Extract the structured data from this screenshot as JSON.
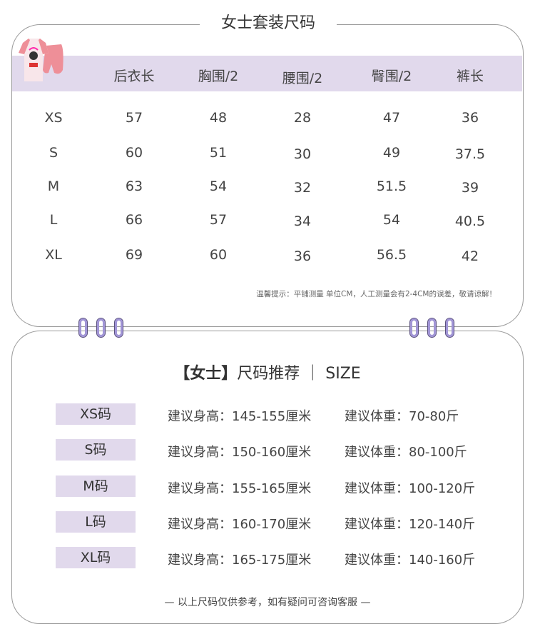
{
  "size_chart": {
    "title": "女士套装尺码",
    "headers": [
      "后衣长",
      "胸围/2",
      "腰围/2",
      "臀围/2",
      "裤长"
    ],
    "rows": [
      {
        "size": "XS",
        "values": [
          "57",
          "48",
          "28",
          "47",
          "36"
        ]
      },
      {
        "size": "S",
        "values": [
          "60",
          "51",
          "30",
          "49",
          "37.5"
        ]
      },
      {
        "size": "M",
        "values": [
          "63",
          "54",
          "32",
          "51.5",
          "39"
        ]
      },
      {
        "size": "L",
        "values": [
          "66",
          "57",
          "34",
          "54",
          "40.5"
        ]
      },
      {
        "size": "XL",
        "values": [
          "69",
          "60",
          "36",
          "56.5",
          "42"
        ]
      }
    ],
    "note": "温馨提示：平铺测量 单位CM，人工测量会有2-4CM的误差，敬请谅解！"
  },
  "recommend": {
    "title_bold": "【女士】",
    "title_rest": "尺码推荐 ｜ SIZE",
    "rows": [
      {
        "size": "XS码",
        "height": "建议身高：145-155厘米",
        "weight": "建议体重：70-80斤"
      },
      {
        "size": "S码",
        "height": "建议身高：150-160厘米",
        "weight": "建议体重：80-100斤"
      },
      {
        "size": "M码",
        "height": "建议身高：155-165厘米",
        "weight": "建议体重：100-120斤"
      },
      {
        "size": "L码",
        "height": "建议身高：160-170厘米",
        "weight": "建议体重：120-140斤"
      },
      {
        "size": "XL码",
        "height": "建议身高：165-175厘米",
        "weight": "建议体重：140-160斤"
      }
    ],
    "footer": "— 以上尺码仅供参考，如有疑问可咨询客服 —"
  },
  "colors": {
    "band": "#e1d9ec",
    "ring": "#a195d6",
    "shirt": "#f0a0a8"
  }
}
